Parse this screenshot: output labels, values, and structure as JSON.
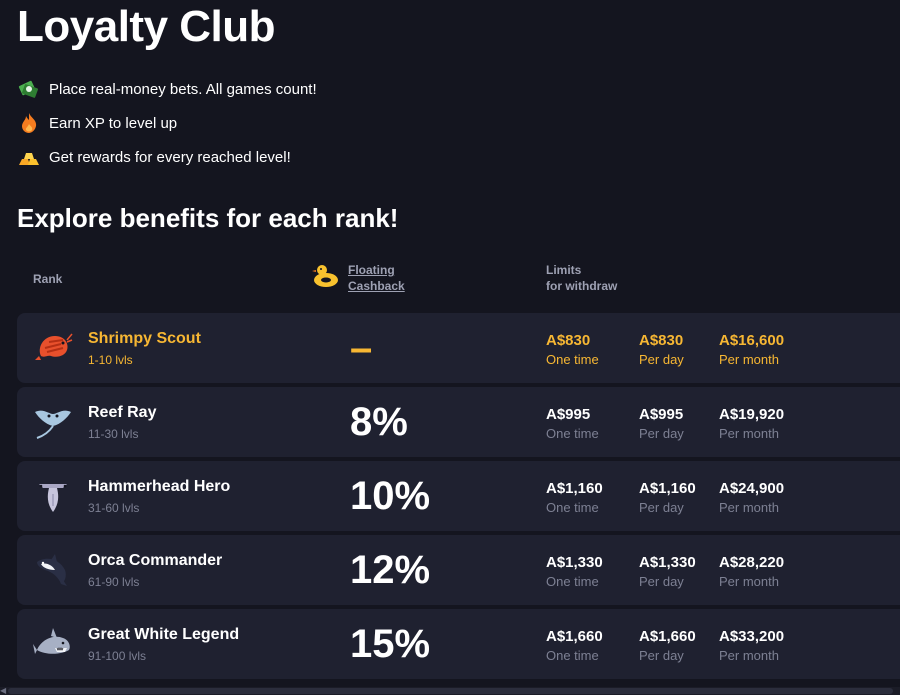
{
  "page": {
    "title": "Loyalty Club",
    "features": [
      {
        "icon": "money-bills-icon",
        "text": "Place real-money bets. All games count!"
      },
      {
        "icon": "flame-icon",
        "text": "Earn XP to level up"
      },
      {
        "icon": "gold-bars-icon",
        "text": "Get rewards for every reached level!"
      }
    ],
    "subtitle": "Explore benefits for each rank!"
  },
  "table": {
    "header_rank": "Rank",
    "header_cashback_line1": "Floating",
    "header_cashback_line2": "Cashback",
    "header_limits_line1": "Limits",
    "header_limits_line2": "for withdraw",
    "rows": [
      {
        "icon": "shrimp-icon",
        "name": "Shrimpy Scout",
        "levels": "1-10 lvls",
        "cashback": "–",
        "limits": [
          {
            "value": "A$830",
            "label": "One time"
          },
          {
            "value": "A$830",
            "label": "Per day"
          },
          {
            "value": "A$16,600",
            "label": "Per month"
          }
        ]
      },
      {
        "icon": "stingray-icon",
        "name": "Reef Ray",
        "levels": "11-30 lvls",
        "cashback": "8%",
        "limits": [
          {
            "value": "A$995",
            "label": "One time"
          },
          {
            "value": "A$995",
            "label": "Per day"
          },
          {
            "value": "A$19,920",
            "label": "Per month"
          }
        ]
      },
      {
        "icon": "hammerhead-icon",
        "name": "Hammerhead Hero",
        "levels": "31-60 lvls",
        "cashback": "10%",
        "limits": [
          {
            "value": "A$1,160",
            "label": "One time"
          },
          {
            "value": "A$1,160",
            "label": "Per day"
          },
          {
            "value": "A$24,900",
            "label": "Per month"
          }
        ]
      },
      {
        "icon": "orca-icon",
        "name": "Orca Commander",
        "levels": "61-90 lvls",
        "cashback": "12%",
        "limits": [
          {
            "value": "A$1,330",
            "label": "One time"
          },
          {
            "value": "A$1,330",
            "label": "Per day"
          },
          {
            "value": "A$28,220",
            "label": "Per month"
          }
        ]
      },
      {
        "icon": "great-white-shark-icon",
        "name": "Great White Legend",
        "levels": "91-100 lvls",
        "cashback": "15%",
        "limits": [
          {
            "value": "A$1,660",
            "label": "One time"
          },
          {
            "value": "A$1,660",
            "label": "Per day"
          },
          {
            "value": "A$33,200",
            "label": "Per month"
          }
        ]
      }
    ]
  },
  "colors": {
    "background": "#14151f",
    "row_bg": "#1f2130",
    "accent": "#f7b733",
    "muted": "#7d8093"
  }
}
